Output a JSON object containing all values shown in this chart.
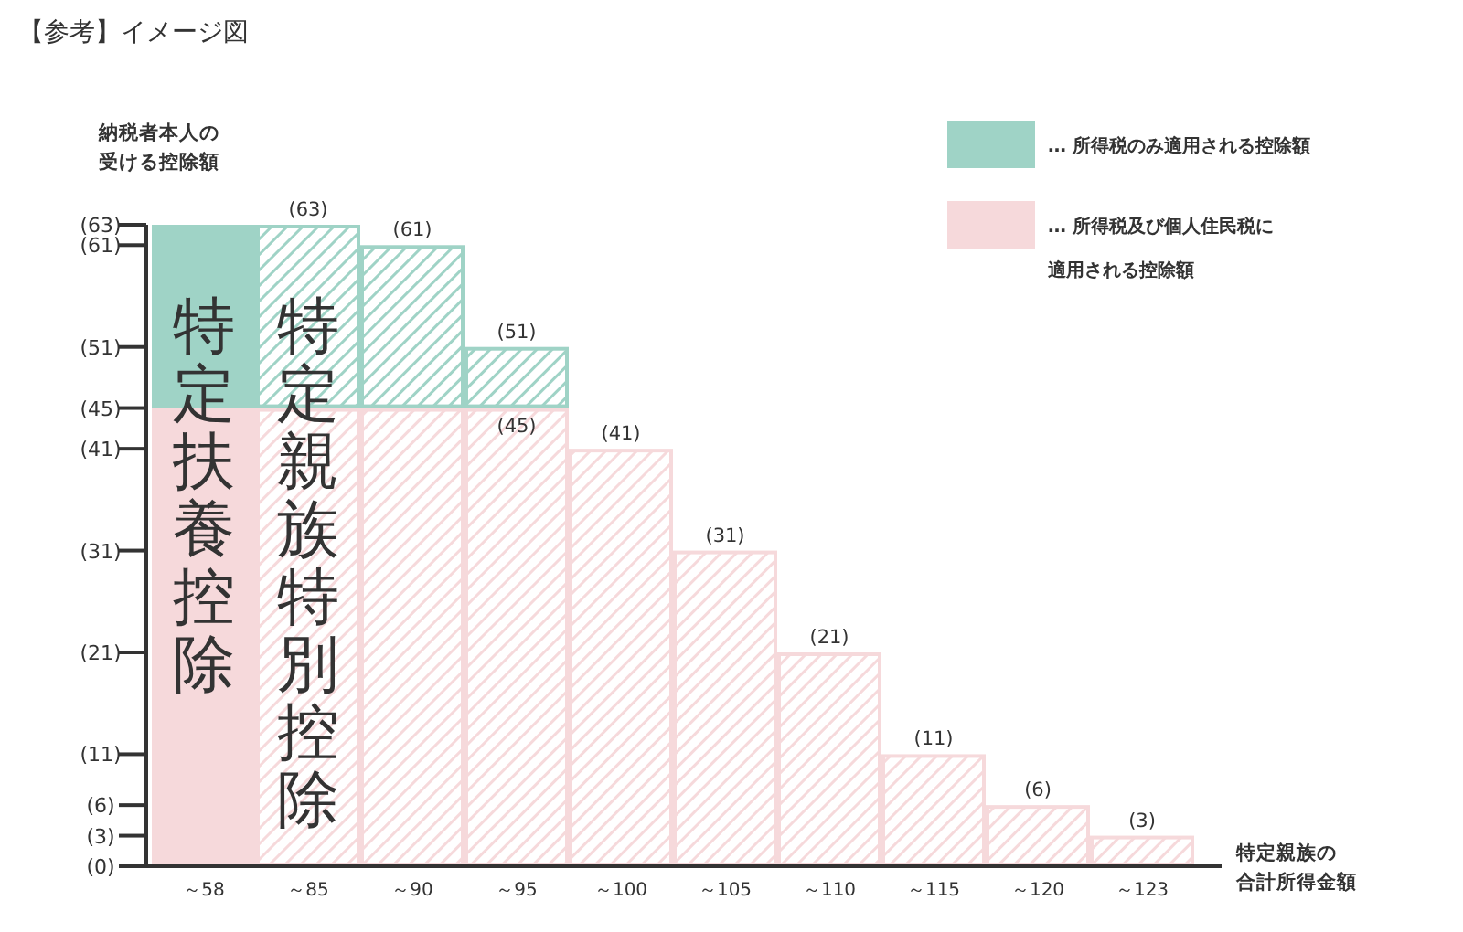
{
  "chart_data": {
    "type": "bar",
    "stacked": true,
    "title": "【参考】イメージ図",
    "ylabel": "納税者本人の受ける控除額",
    "xlabel": "特定親族の合計所得金額",
    "categories": [
      "～58",
      "～85",
      "～90",
      "～95",
      "～100",
      "～105",
      "～110",
      "～115",
      "～120",
      "～123"
    ],
    "series": [
      {
        "name": "… 所得税及び個人住民税に適用される控除額",
        "color": "#f6d9db",
        "values": [
          45,
          45,
          45,
          45,
          41,
          31,
          21,
          11,
          6,
          3
        ],
        "value_labels": [
          null,
          null,
          null,
          "(45)",
          null,
          null,
          null,
          null,
          null,
          null
        ]
      },
      {
        "name": "… 所得税のみ適用される控除額",
        "color": "#9fd3c6",
        "values": [
          18,
          18,
          16,
          6,
          0,
          0,
          0,
          0,
          0,
          0
        ]
      }
    ],
    "totals": [
      null,
      "(63)",
      "(61)",
      "(51)",
      "(41)",
      "(31)",
      "(21)",
      "(11)",
      "(6)",
      "(3)"
    ],
    "annotations": [
      "特定扶養控除",
      "特定親族特別控除"
    ],
    "ylim": [
      0,
      63
    ],
    "yticks": [
      {
        "value": 0,
        "label": "(0)"
      },
      {
        "value": 3,
        "label": "(3)"
      },
      {
        "value": 6,
        "label": "(6)"
      },
      {
        "value": 11,
        "label": "(11)"
      },
      {
        "value": 21,
        "label": "(21)"
      },
      {
        "value": 31,
        "label": "(31)"
      },
      {
        "value": 41,
        "label": "(41)"
      },
      {
        "value": 45,
        "label": "(45)"
      },
      {
        "value": 51,
        "label": "(51)"
      },
      {
        "value": 61,
        "label": "(61)"
      },
      {
        "value": 63,
        "label": "(63)"
      }
    ],
    "legend": "top right"
  }
}
